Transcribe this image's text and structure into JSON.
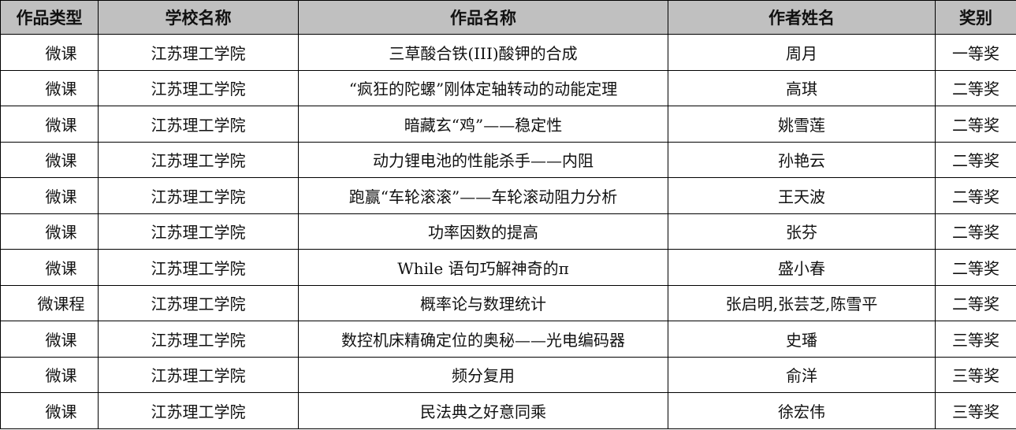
{
  "table": {
    "headers": [
      "作品类型",
      "学校名称",
      "作品名称",
      "作者姓名",
      "奖别"
    ],
    "rows": [
      {
        "type": "微课",
        "school": "江苏理工学院",
        "title": "三草酸合铁(III)酸钾的合成",
        "author": "周月",
        "award": "一等奖"
      },
      {
        "type": "微课",
        "school": "江苏理工学院",
        "title": "“疯狂的陀螺”刚体定轴转动的动能定理",
        "author": "高琪",
        "award": "二等奖"
      },
      {
        "type": "微课",
        "school": "江苏理工学院",
        "title": "暗藏玄“鸡”——稳定性",
        "author": "姚雪莲",
        "award": "二等奖"
      },
      {
        "type": "微课",
        "school": "江苏理工学院",
        "title": "动力锂电池的性能杀手——内阻",
        "author": "孙艳云",
        "award": "二等奖"
      },
      {
        "type": "微课",
        "school": "江苏理工学院",
        "title": "跑赢“车轮滚滚”——车轮滚动阻力分析",
        "author": "王天波",
        "award": "二等奖"
      },
      {
        "type": "微课",
        "school": "江苏理工学院",
        "title": "功率因数的提高",
        "author": "张芬",
        "award": "二等奖"
      },
      {
        "type": "微课",
        "school": "江苏理工学院",
        "title": "While 语句巧解神奇的π",
        "author": "盛小春",
        "award": "二等奖"
      },
      {
        "type": "微课程",
        "school": "江苏理工学院",
        "title": "概率论与数理统计",
        "author": "张启明,张芸芝,陈雪平",
        "award": "二等奖"
      },
      {
        "type": "微课",
        "school": "江苏理工学院",
        "title": "数控机床精确定位的奥秘——光电编码器",
        "author": "史璠",
        "award": "三等奖"
      },
      {
        "type": "微课",
        "school": "江苏理工学院",
        "title": "频分复用",
        "author": "俞洋",
        "award": "三等奖"
      },
      {
        "type": "微课",
        "school": "江苏理工学院",
        "title": "民法典之好意同乘",
        "author": "徐宏伟",
        "award": "三等奖"
      }
    ]
  }
}
